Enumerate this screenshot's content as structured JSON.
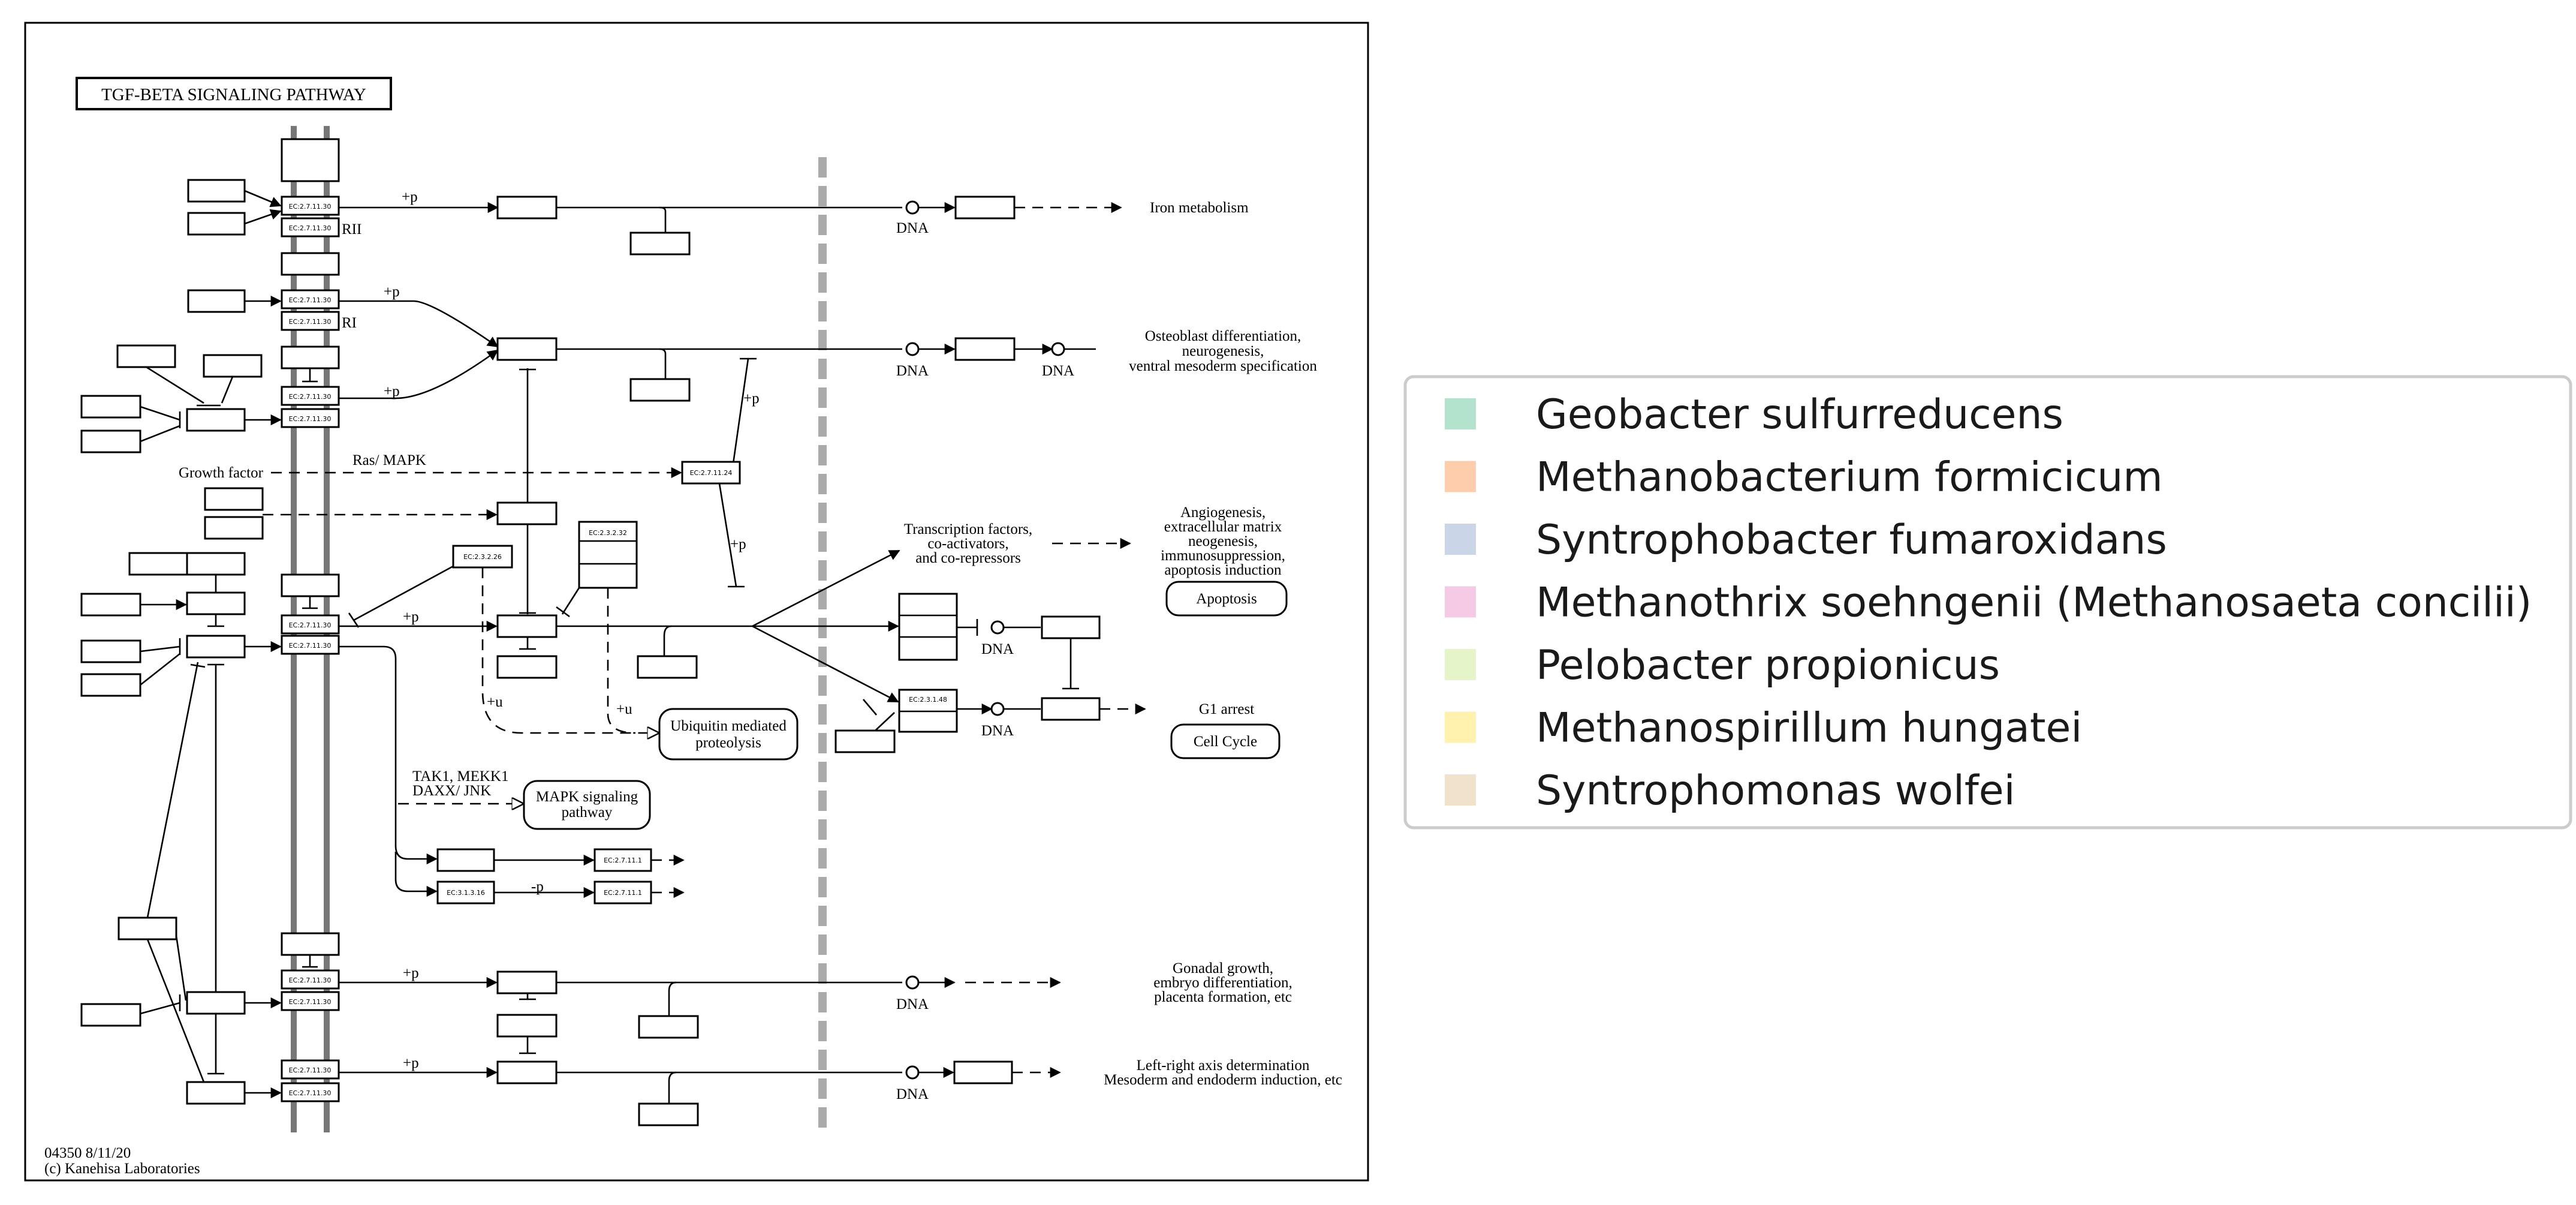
{
  "diagram": {
    "title": "TGF-BETA SIGNALING PATHWAY",
    "footer_id": "04350 8/11/20",
    "footer_copyright": "(c) Kanehisa Laboratories",
    "ec_labels": {
      "kinase": "EC:2.7.11.30",
      "ec_27111": "EC:2.7.11.1",
      "ec_27124": "EC:2.7.11.24",
      "ec_23226": "EC:2.3.2.26",
      "ec_23232": "EC:2.3.2.32",
      "ec_23148": "EC:2.3.1.48",
      "ec_31316": "EC:3.1.3.16"
    },
    "labels": {
      "rii": "RII",
      "ri": "RI",
      "plus_p": "+p",
      "plus_u": "+u",
      "minus_p": "-p",
      "dna": "DNA",
      "ras_mapk": "Ras/ MAPK",
      "growth_factor": "Growth factor",
      "tak1_line1": "TAK1, MEKK1",
      "tak1_line2": "DAXX/ JNK",
      "tf_line1": "Transcription factors,",
      "tf_line2": "co-activators,",
      "tf_line3": "and co-repressors"
    },
    "outcomes": {
      "iron": "Iron metabolism",
      "osteo_1": "Osteoblast differentiation,",
      "osteo_2": "neurogenesis,",
      "osteo_3": "ventral mesoderm specification",
      "angio_1": "Angiogenesis,",
      "angio_2": "extracellular matrix",
      "angio_3": "neogenesis,",
      "angio_4": "immunosuppression,",
      "angio_5": "apoptosis induction",
      "apoptosis": "Apoptosis",
      "g1": "G1 arrest",
      "cell_cycle": "Cell Cycle",
      "ubiq_1": "Ubiquitin mediated",
      "ubiq_2": "proteolysis",
      "mapk_1": "MAPK signaling",
      "mapk_2": "pathway",
      "gonadal_1": "Gonadal growth,",
      "gonadal_2": "embryo differentiation,",
      "gonadal_3": "placenta formation, etc",
      "lr_1": "Left-right axis determination",
      "lr_2": "Mesoderm and endoderm induction, etc"
    }
  },
  "legend": {
    "items": [
      {
        "label": "Geobacter sulfurreducens",
        "color": "#b3e2cd"
      },
      {
        "label": "Methanobacterium formicicum",
        "color": "#fdcdac"
      },
      {
        "label": "Syntrophobacter fumaroxidans",
        "color": "#cbd5e8"
      },
      {
        "label": "Methanothrix soehngenii (Methanosaeta concilii)",
        "color": "#f4cae4"
      },
      {
        "label": "Pelobacter propionicus",
        "color": "#e6f5c9"
      },
      {
        "label": "Methanospirillum hungatei",
        "color": "#fff2ae"
      },
      {
        "label": "Syntrophomonas wolfei",
        "color": "#f1e2cc"
      }
    ]
  }
}
